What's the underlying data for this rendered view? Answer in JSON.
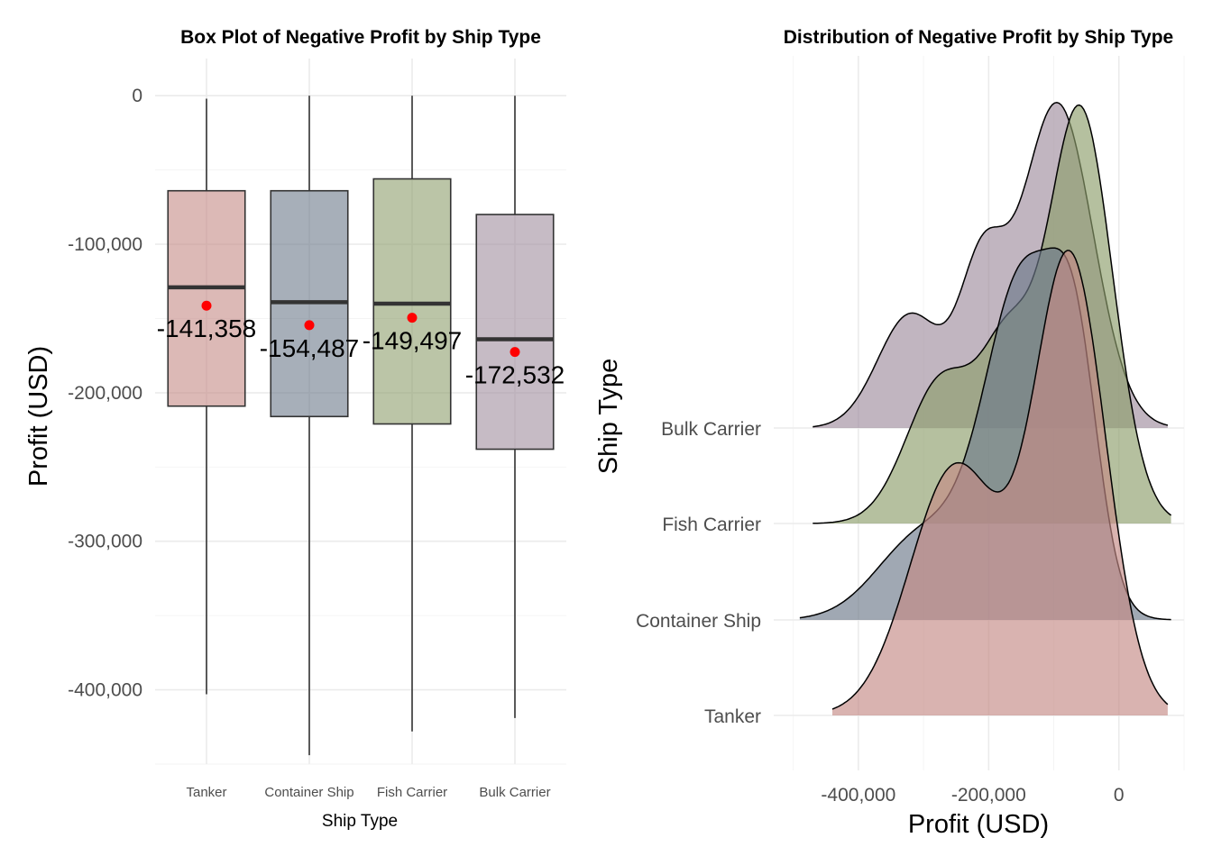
{
  "colors": {
    "Tanker": "#c48b86",
    "Container Ship": "#6d7a8a",
    "Fish Carrier": "#8d9e6c",
    "Bulk Carrier": "#a08e9e",
    "mean": "#ff0000",
    "median": "#333333"
  },
  "chart_data": [
    {
      "type": "box",
      "title": "Box Plot of Negative Profit by Ship Type",
      "xlabel": "Ship Type",
      "ylabel": "Profit (USD)",
      "ylim": [
        -450000,
        25000
      ],
      "yticks": [
        0,
        -100000,
        -200000,
        -300000,
        -400000
      ],
      "ytick_labels": [
        "0",
        "-100,000",
        "-200,000",
        "-300,000",
        "-400,000"
      ],
      "categories": [
        "Tanker",
        "Container Ship",
        "Fish Carrier",
        "Bulk Carrier"
      ],
      "boxes": [
        {
          "name": "Tanker",
          "min": -403000,
          "q1": -209000,
          "median": -129000,
          "q3": -64000,
          "max": -2000,
          "mean": -141358,
          "mean_label": "-141,358"
        },
        {
          "name": "Container Ship",
          "min": -444000,
          "q1": -216000,
          "median": -139000,
          "q3": -64000,
          "max": 0,
          "mean": -154487,
          "mean_label": "-154,487"
        },
        {
          "name": "Fish Carrier",
          "min": -428000,
          "q1": -221000,
          "median": -140000,
          "q3": -56000,
          "max": 0,
          "mean": -149497,
          "mean_label": "-149,497"
        },
        {
          "name": "Bulk Carrier",
          "min": -419000,
          "q1": -238000,
          "median": -164000,
          "q3": -80000,
          "max": 0,
          "mean": -172532,
          "mean_label": "-172,532"
        }
      ]
    },
    {
      "type": "ridgeline",
      "title": "Distribution of Negative Profit by Ship Type",
      "xlabel": "Profit (USD)",
      "ylabel": "Ship Type",
      "xlim": [
        -530000,
        100000
      ],
      "xticks": [
        -400000,
        -200000,
        0
      ],
      "xtick_labels": [
        "-400,000",
        "-200,000",
        "0"
      ],
      "categories": [
        "Tanker",
        "Container Ship",
        "Fish Carrier",
        "Bulk Carrier"
      ],
      "series": [
        {
          "name": "Tanker",
          "range": [
            -440000,
            75000
          ],
          "components": [
            {
              "mu": -75000,
              "sigma": 55000,
              "w": 1.0
            },
            {
              "mu": -250000,
              "sigma": 70000,
              "w": 0.55
            }
          ],
          "peak": 5.0
        },
        {
          "name": "Container Ship",
          "range": [
            -490000,
            80000
          ],
          "components": [
            {
              "mu": -145000,
              "sigma": 60000,
              "w": 1.0
            },
            {
              "mu": -65000,
              "sigma": 35000,
              "w": 0.55
            },
            {
              "mu": -300000,
              "sigma": 70000,
              "w": 0.25
            }
          ],
          "peak": 4.0
        },
        {
          "name": "Fish Carrier",
          "range": [
            -470000,
            80000
          ],
          "components": [
            {
              "mu": -60000,
              "sigma": 50000,
              "w": 1.0
            },
            {
              "mu": -170000,
              "sigma": 40000,
              "w": 0.35
            },
            {
              "mu": -270000,
              "sigma": 55000,
              "w": 0.35
            }
          ],
          "peak": 4.5
        },
        {
          "name": "Bulk Carrier",
          "range": [
            -470000,
            75000
          ],
          "components": [
            {
              "mu": -95000,
              "sigma": 55000,
              "w": 1.0
            },
            {
              "mu": -210000,
              "sigma": 35000,
              "w": 0.45
            },
            {
              "mu": -320000,
              "sigma": 50000,
              "w": 0.35
            }
          ],
          "peak": 3.5
        }
      ]
    }
  ]
}
